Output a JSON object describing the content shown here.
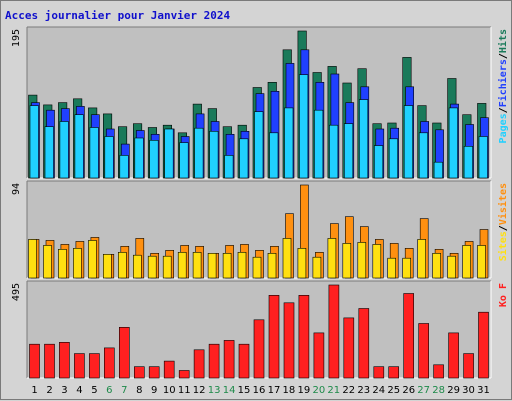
{
  "title": "Acces journalier pour Janvier 2024",
  "colors": {
    "hits": "#1a7a5a",
    "files": "#2040ff",
    "pages": "#20d0ff",
    "visits": "#ff9010",
    "sites": "#ffe010",
    "kbytes": "#ff2020",
    "weekend_label": "#1e8a4a",
    "plot_bg": "#c0c0c0",
    "page_bg": "#d4d4d4"
  },
  "chart_data": [
    {
      "type": "bar",
      "categories": [
        "1",
        "2",
        "3",
        "4",
        "5",
        "6",
        "7",
        "8",
        "9",
        "10",
        "11",
        "12",
        "13",
        "14",
        "15",
        "16",
        "17",
        "18",
        "19",
        "20",
        "21",
        "22",
        "23",
        "24",
        "25",
        "26",
        "27",
        "28",
        "29",
        "30",
        "31"
      ],
      "weekend_categories": [
        "6",
        "7",
        "13",
        "14",
        "20",
        "21",
        "27",
        "28"
      ],
      "ymax_label": "195",
      "ylim": [
        0,
        195
      ],
      "right_labels": [
        {
          "text": "Pages",
          "color_key": "pages"
        },
        {
          "text": "Fichiers",
          "color_key": "files"
        },
        {
          "text": "Hits",
          "color_key": "hits"
        }
      ],
      "series": [
        {
          "name": "Hits",
          "values": [
            110,
            97,
            100,
            105,
            93,
            85,
            68,
            72,
            67,
            70,
            60,
            98,
            92,
            68,
            70,
            120,
            127,
            170,
            195,
            140,
            148,
            126,
            145,
            72,
            73,
            160,
            96,
            73,
            132,
            84,
            99
          ]
        },
        {
          "name": "Fichiers",
          "values": [
            100,
            90,
            92,
            95,
            84,
            65,
            45,
            63,
            58,
            65,
            55,
            85,
            75,
            58,
            62,
            112,
            115,
            152,
            170,
            127,
            138,
            100,
            121,
            65,
            66,
            121,
            75,
            64,
            98,
            71,
            80
          ]
        },
        {
          "name": "Pages",
          "values": [
            96,
            68,
            75,
            84,
            67,
            55,
            30,
            53,
            50,
            65,
            47,
            66,
            62,
            30,
            52,
            88,
            60,
            93,
            137,
            90,
            70,
            72,
            104,
            43,
            52,
            96,
            60,
            21,
            93,
            42,
            55
          ]
        }
      ]
    },
    {
      "type": "bar",
      "categories": [
        "1",
        "2",
        "3",
        "4",
        "5",
        "6",
        "7",
        "8",
        "9",
        "10",
        "11",
        "12",
        "13",
        "14",
        "15",
        "16",
        "17",
        "18",
        "19",
        "20",
        "21",
        "22",
        "23",
        "24",
        "25",
        "26",
        "27",
        "28",
        "29",
        "30",
        "31"
      ],
      "ymax_label": "94",
      "ylim": [
        0,
        94
      ],
      "right_labels": [
        {
          "text": "Sites",
          "color_key": "sites"
        },
        {
          "text": "Visites",
          "color_key": "visits"
        }
      ],
      "series": [
        {
          "name": "Visites",
          "values": [
            39,
            38,
            34,
            37,
            41,
            24,
            32,
            40,
            25,
            28,
            33,
            32,
            25,
            33,
            34,
            28,
            32,
            65,
            94,
            26,
            55,
            62,
            52,
            39,
            35,
            30,
            60,
            29,
            25,
            37,
            49
          ]
        },
        {
          "name": "Sites",
          "values": [
            39,
            33,
            29,
            30,
            38,
            24,
            26,
            23,
            22,
            22,
            26,
            26,
            25,
            25,
            26,
            21,
            25,
            40,
            30,
            21,
            40,
            35,
            36,
            34,
            20,
            20,
            39,
            25,
            22,
            33,
            33
          ]
        }
      ]
    },
    {
      "type": "bar",
      "categories": [
        "1",
        "2",
        "3",
        "4",
        "5",
        "6",
        "7",
        "8",
        "9",
        "10",
        "11",
        "12",
        "13",
        "14",
        "15",
        "16",
        "17",
        "18",
        "19",
        "20",
        "21",
        "22",
        "23",
        "24",
        "25",
        "26",
        "27",
        "28",
        "29",
        "30",
        "31"
      ],
      "ymax_label": "495",
      "ylim": [
        0,
        495
      ],
      "right_labels": [
        {
          "text": "Ko F",
          "color_key": "kbytes"
        }
      ],
      "series": [
        {
          "name": "Ko F",
          "values": [
            180,
            180,
            190,
            130,
            130,
            160,
            270,
            60,
            60,
            90,
            40,
            150,
            180,
            200,
            180,
            310,
            440,
            400,
            440,
            240,
            495,
            320,
            370,
            60,
            60,
            450,
            290,
            70,
            240,
            130,
            350
          ]
        }
      ]
    }
  ]
}
